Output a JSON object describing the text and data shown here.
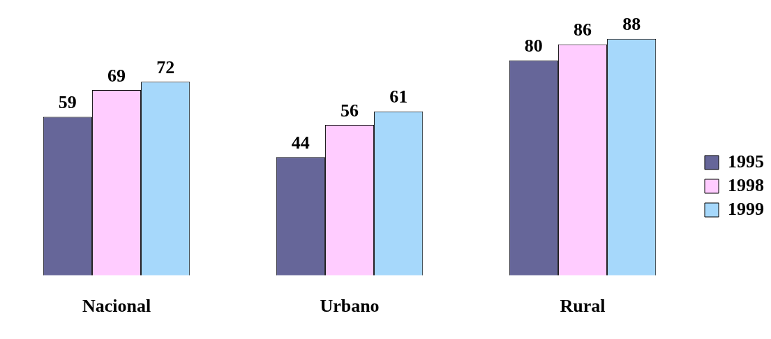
{
  "chart_data": {
    "type": "bar",
    "categories": [
      "Nacional",
      "Urbano",
      "Rural"
    ],
    "series": [
      {
        "name": "1995",
        "color": "#666699",
        "values": [
          59,
          44,
          80
        ]
      },
      {
        "name": "1998",
        "color": "#ffccff",
        "values": [
          69,
          56,
          86
        ]
      },
      {
        "name": "1999",
        "color": "#a6d8fb",
        "values": [
          72,
          61,
          88
        ]
      }
    ],
    "tick_labels": "x",
    "grid": false,
    "legend": "right",
    "data_labels": true
  }
}
